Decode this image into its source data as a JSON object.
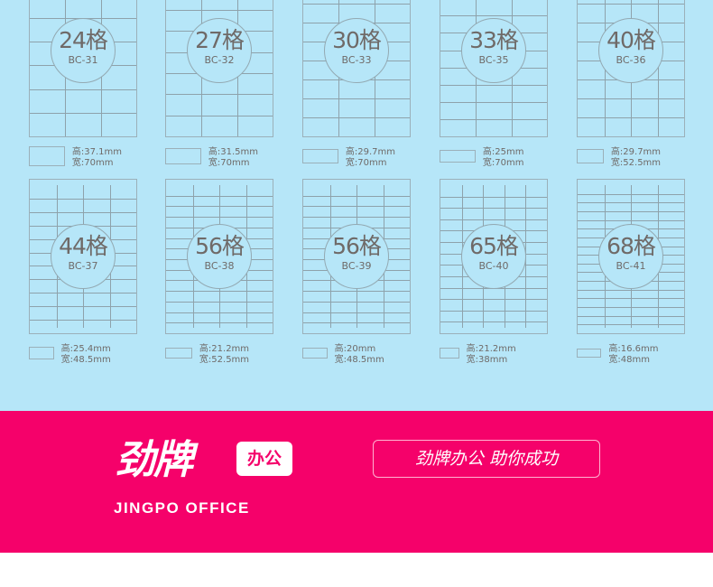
{
  "colors": {
    "background": "#b6e6f8",
    "brand": "#f5016a"
  },
  "labels": [
    {
      "count": "24格",
      "code": "BC-31",
      "height": "高:37.1mm",
      "width": "宽:70mm",
      "cols": 3,
      "rows": 8
    },
    {
      "count": "27格",
      "code": "BC-32",
      "height": "高:31.5mm",
      "width": "宽:70mm",
      "cols": 3,
      "rows": 9
    },
    {
      "count": "30格",
      "code": "BC-33",
      "height": "高:29.7mm",
      "width": "宽:70mm",
      "cols": 3,
      "rows": 10
    },
    {
      "count": "33格",
      "code": "BC-35",
      "height": "高:25mm",
      "width": "宽:70mm",
      "cols": 3,
      "rows": 11
    },
    {
      "count": "40格",
      "code": "BC-36",
      "height": "高:29.7mm",
      "width": "宽:52.5mm",
      "cols": 4,
      "rows": 10
    },
    {
      "count": "44格",
      "code": "BC-37",
      "height": "高:25.4mm",
      "width": "宽:48.5mm",
      "cols": 4,
      "rows": 11
    },
    {
      "count": "56格",
      "code": "BC-38",
      "height": "高:21.2mm",
      "width": "宽:52.5mm",
      "cols": 4,
      "rows": 14
    },
    {
      "count": "56格",
      "code": "BC-39",
      "height": "高:20mm",
      "width": "宽:48.5mm",
      "cols": 4,
      "rows": 14
    },
    {
      "count": "65格",
      "code": "BC-40",
      "height": "高:21.2mm",
      "width": "宽:38mm",
      "cols": 5,
      "rows": 13
    },
    {
      "count": "68格",
      "code": "BC-41",
      "height": "高:16.6mm",
      "width": "宽:48mm",
      "cols": 4,
      "rows": 17
    }
  ],
  "brand": {
    "name_cn": "劲牌",
    "badge": "办公",
    "name_en": "JINGPO OFFICE",
    "slogan": "劲牌办公  助你成功"
  }
}
